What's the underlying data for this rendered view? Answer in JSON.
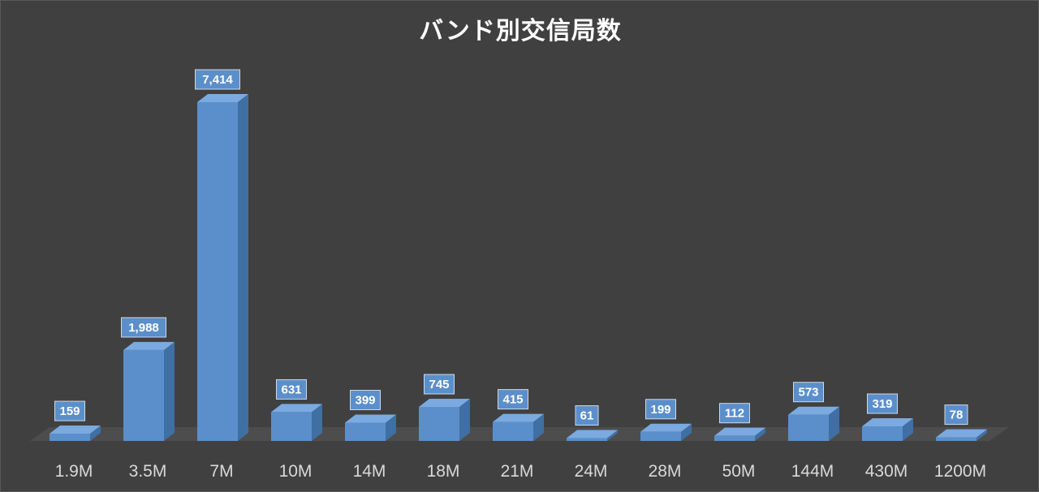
{
  "chart_data": {
    "type": "bar",
    "title": "バンド別交信局数",
    "categories": [
      "1.9M",
      "3.5M",
      "7M",
      "10M",
      "14M",
      "18M",
      "21M",
      "24M",
      "28M",
      "50M",
      "144M",
      "430M",
      "1200M"
    ],
    "values": [
      159,
      1988,
      7414,
      631,
      399,
      745,
      415,
      61,
      199,
      112,
      573,
      319,
      78
    ],
    "value_labels": [
      "159",
      "1,988",
      "7,414",
      "631",
      "399",
      "745",
      "415",
      "61",
      "199",
      "112",
      "573",
      "319",
      "78"
    ],
    "xlabel": "",
    "ylabel": "",
    "ylim": [
      0,
      7414
    ],
    "grid": false,
    "legend": "none",
    "style": "3d-column"
  },
  "colors": {
    "background": "#404040",
    "floor": "#4d4d4d",
    "bar_front": "#5b8fcb",
    "bar_side": "#3f6fa3",
    "bar_top": "#7aaae0",
    "label_box": "#5b8fcb",
    "label_border": "#cfd9e6"
  }
}
